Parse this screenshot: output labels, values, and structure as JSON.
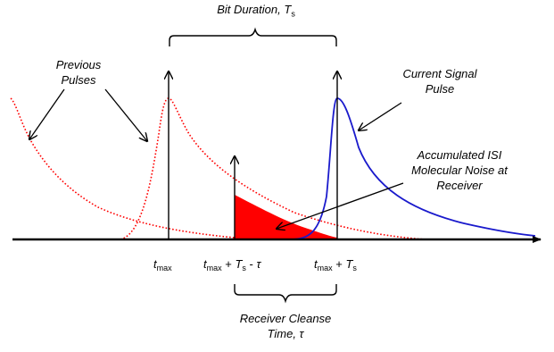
{
  "labels": {
    "bit_duration_text": "Bit Duration,",
    "bit_duration_symbol": "T",
    "bit_duration_sub": "s",
    "previous_pulses_line1": "Previous",
    "previous_pulses_line2": "Pulses",
    "current_pulse_line1": "Current Signal",
    "current_pulse_line2": "Pulse",
    "isi_line1": "Accumulated ISI",
    "isi_line2": "Molecular Noise at",
    "isi_line3": "Receiver",
    "cleanse_line1": "Receiver Cleanse",
    "cleanse_line2": "Time, τ"
  },
  "ticks": {
    "t_italic": "t",
    "max_sub": "max",
    "plus": " + ",
    "minus": " - ",
    "T_italic": "T",
    "s_sub": "s",
    "tau": "τ"
  },
  "colors": {
    "previous_pulses": "#ff0000",
    "current_pulse": "#1a1acc",
    "isi_fill": "#ff0000",
    "axis": "#000000"
  }
}
